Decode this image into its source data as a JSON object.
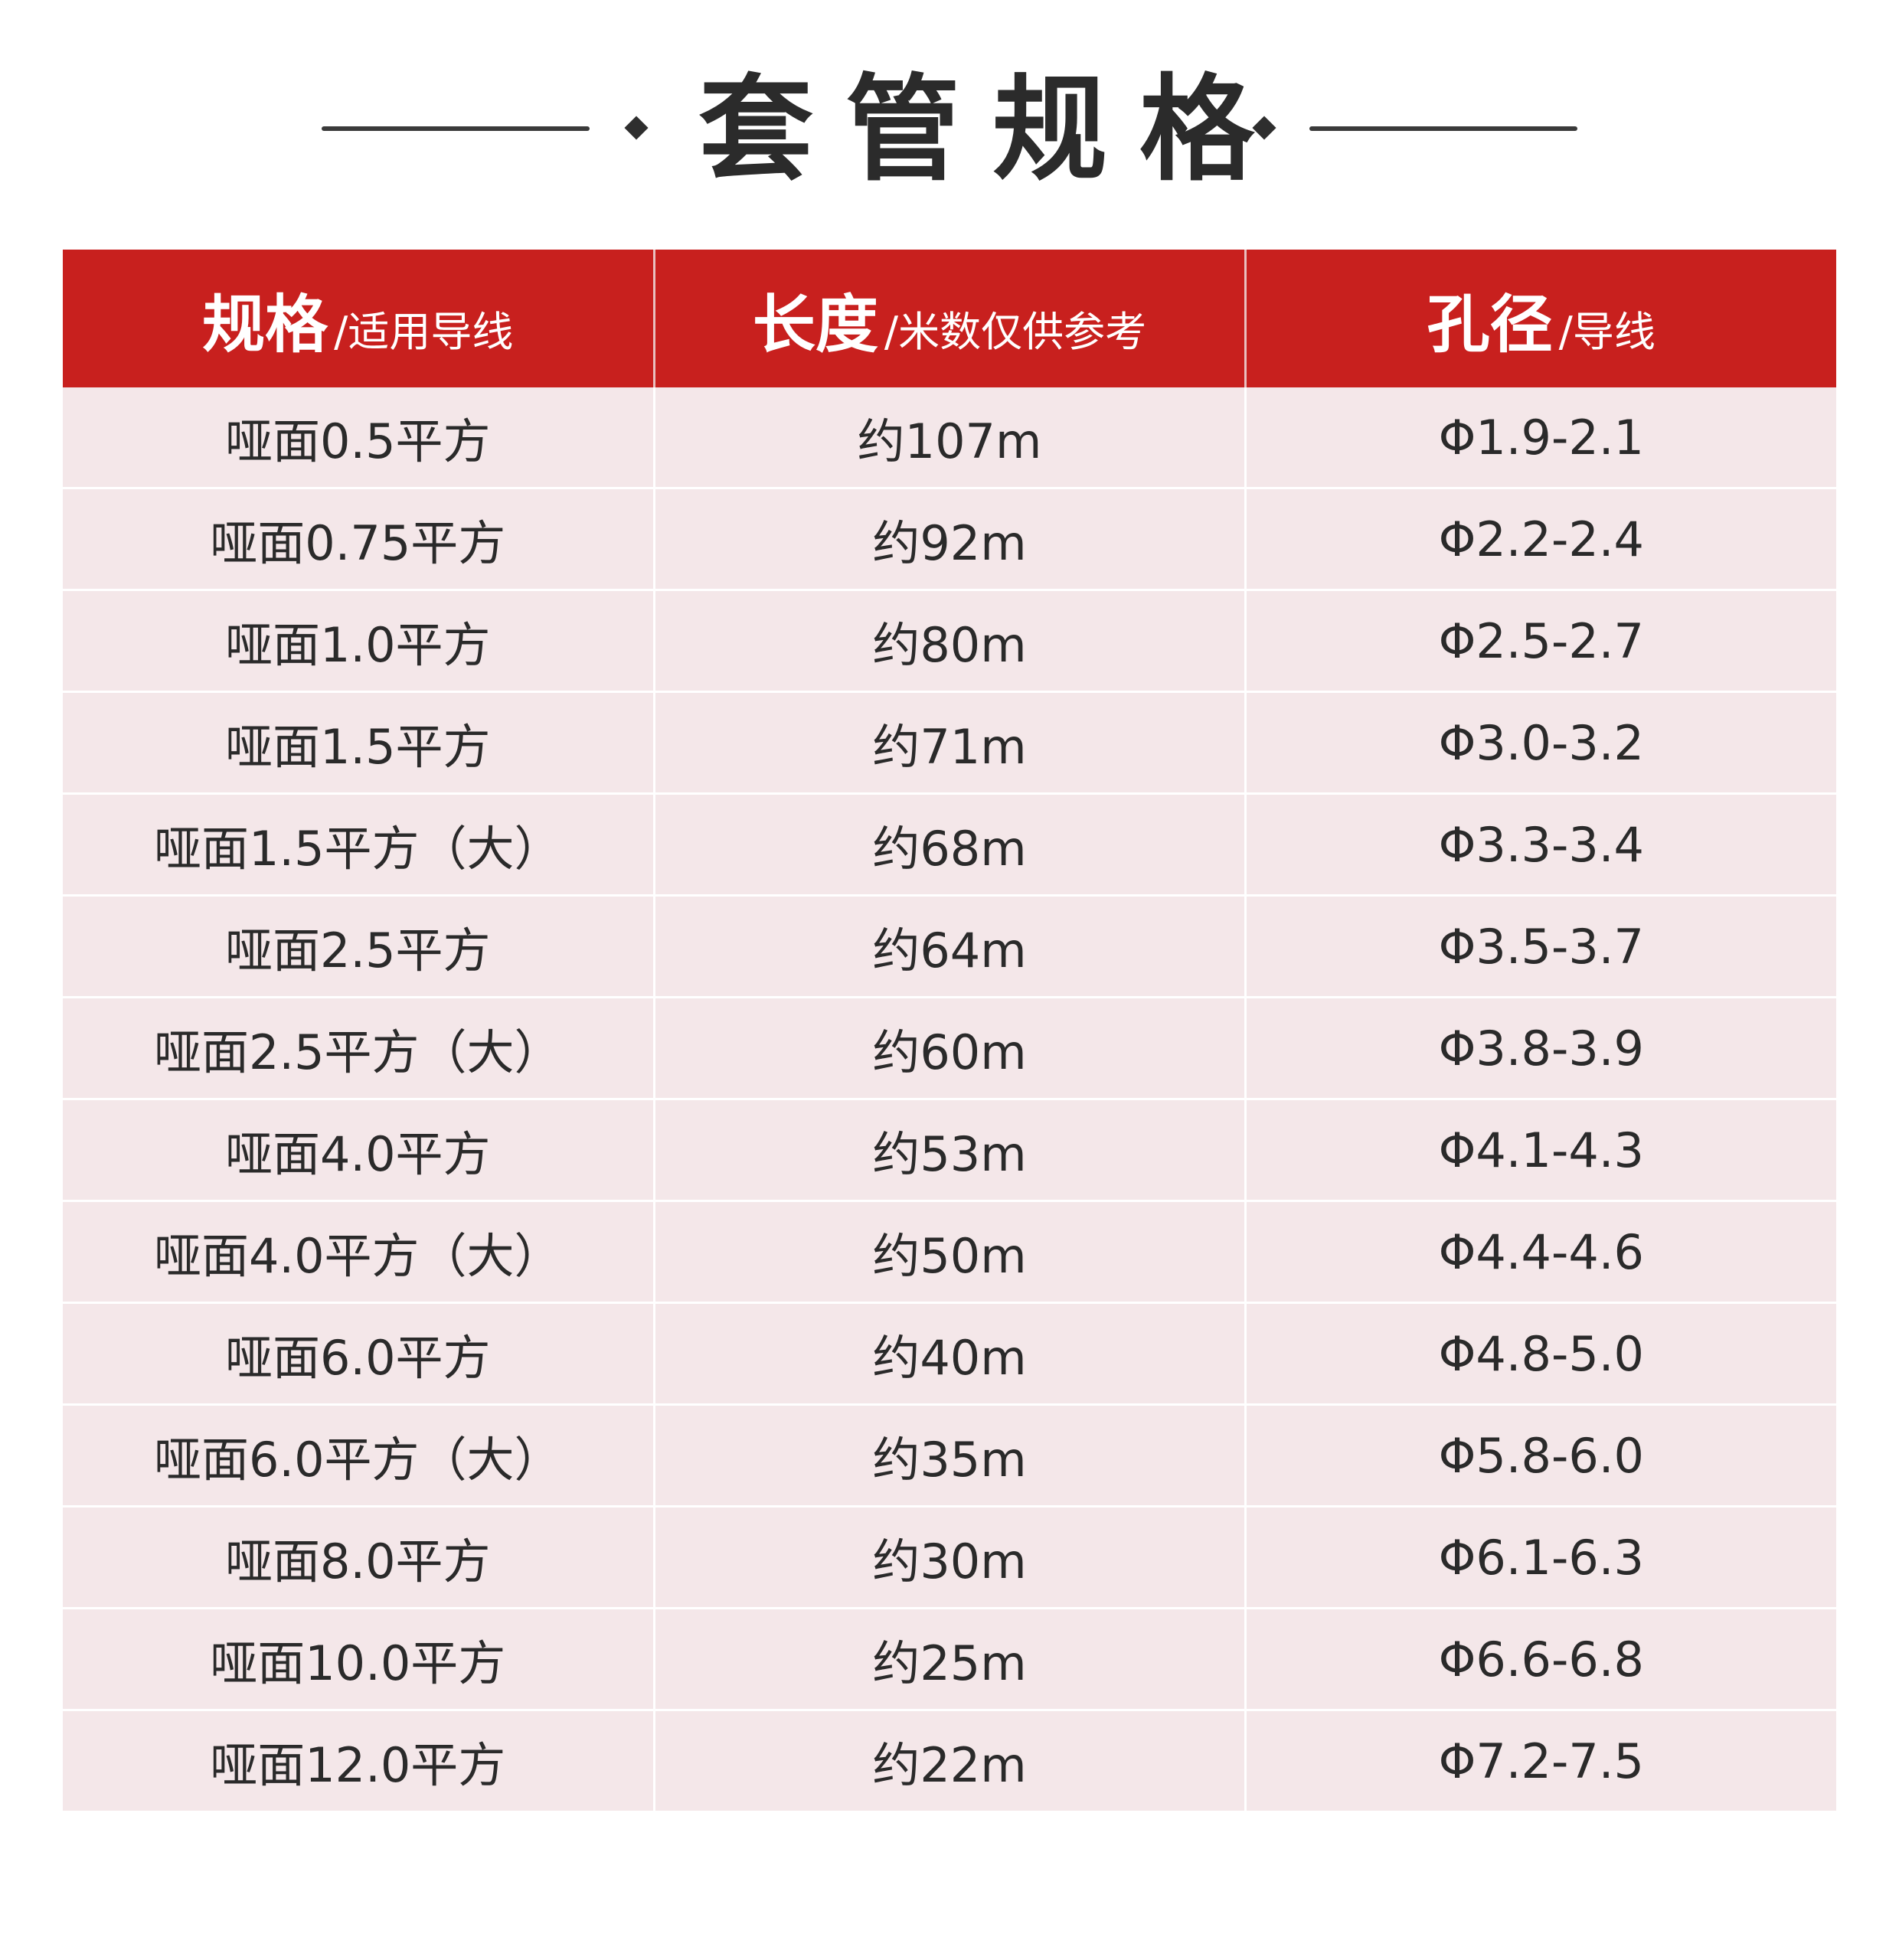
{
  "title": "套管规格",
  "colors": {
    "header_bg": "#c8201e",
    "header_text": "#ffffff",
    "row_bg": "#f4e7e9",
    "title_text": "#2b2b2b"
  },
  "table": {
    "headers": [
      {
        "main": "规格",
        "sub": "/适用导线"
      },
      {
        "main": "长度",
        "sub": "/米数仅供参考"
      },
      {
        "main": "孔径",
        "sub": "/导线"
      }
    ],
    "rows": [
      [
        "哑面0.5平方",
        "约107m",
        "Φ1.9-2.1"
      ],
      [
        "哑面0.75平方",
        "约92m",
        "Φ2.2-2.4"
      ],
      [
        "哑面1.0平方",
        "约80m",
        "Φ2.5-2.7"
      ],
      [
        "哑面1.5平方",
        "约71m",
        "Φ3.0-3.2"
      ],
      [
        "哑面1.5平方（大）",
        "约68m",
        "Φ3.3-3.4"
      ],
      [
        "哑面2.5平方",
        "约64m",
        "Φ3.5-3.7"
      ],
      [
        "哑面2.5平方（大）",
        "约60m",
        "Φ3.8-3.9"
      ],
      [
        "哑面4.0平方",
        "约53m",
        "Φ4.1-4.3"
      ],
      [
        "哑面4.0平方（大）",
        "约50m",
        "Φ4.4-4.6"
      ],
      [
        "哑面6.0平方",
        "约40m",
        "Φ4.8-5.0"
      ],
      [
        "哑面6.0平方（大）",
        "约35m",
        "Φ5.8-6.0"
      ],
      [
        "哑面8.0平方",
        "约30m",
        "Φ6.1-6.3"
      ],
      [
        "哑面10.0平方",
        "约25m",
        "Φ6.6-6.8"
      ],
      [
        "哑面12.0平方",
        "约22m",
        "Φ7.2-7.5"
      ]
    ]
  }
}
